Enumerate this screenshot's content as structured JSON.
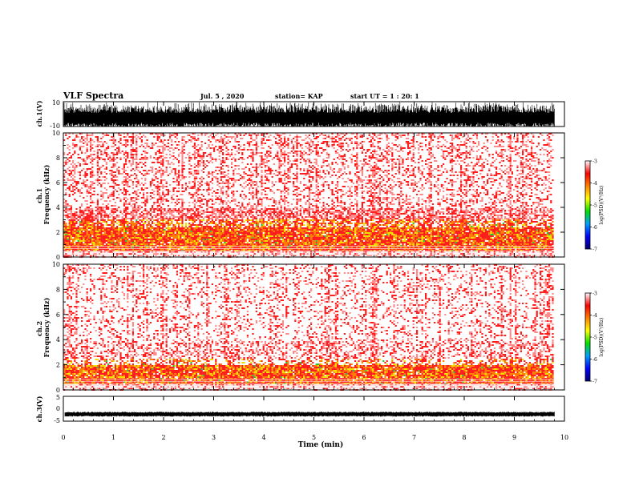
{
  "header": {
    "title": "VLF Spectra",
    "date": "Jul. 5 , 2020",
    "station": "station= KAP",
    "start": "start UT = 1 : 20: 1"
  },
  "chart_data": [
    {
      "type": "line",
      "name": "ch1-waveform",
      "ylabel": "ch.1(V)",
      "ylim": [
        -10,
        10
      ],
      "yticks": [
        "10",
        "-10"
      ],
      "xlim": [
        0,
        10
      ],
      "color": "#000000",
      "description_of_signal": "dense waveform saturating between about -10 and 10 V over 0 to 9.8 min"
    },
    {
      "type": "heatmap",
      "name": "ch1-spectrogram",
      "ylabel": "ch.1\nFrequency (kHz)",
      "ylim": [
        0,
        10
      ],
      "yticks": [
        "0",
        "2",
        "4",
        "6",
        "8",
        "10"
      ],
      "xlim": [
        0,
        10
      ],
      "data_xmax": 9.8,
      "colorbar": {
        "label": "log(PSD)(V²/Hz)",
        "range": [
          -7,
          -3
        ],
        "ticks": [
          "-3",
          "-4",
          "-5",
          "-6",
          "-7"
        ],
        "colors": [
          "#000070",
          "#0000ff",
          "#00a0ff",
          "#00e000",
          "#ffff00",
          "#ff8000",
          "#ff0000",
          "#ffffff"
        ]
      },
      "energy_band_khz": [
        0.5,
        2.5
      ]
    },
    {
      "type": "heatmap",
      "name": "ch2-spectrogram",
      "ylabel": "ch.2\nFrequency (kHz)",
      "ylim": [
        0,
        10
      ],
      "yticks": [
        "0",
        "2",
        "4",
        "6",
        "8",
        "10"
      ],
      "xlim": [
        0,
        10
      ],
      "data_xmax": 9.8,
      "colorbar": {
        "label": "log(PSD)(V²/Hz)",
        "range": [
          -7,
          -3
        ],
        "ticks": [
          "-3",
          "-4",
          "-5",
          "-6",
          "-7"
        ],
        "colors": [
          "#000070",
          "#0000ff",
          "#00a0ff",
          "#00e000",
          "#ffff00",
          "#ff8000",
          "#ff0000",
          "#ffffff"
        ]
      },
      "energy_band_khz": [
        0.5,
        2.0
      ]
    },
    {
      "type": "line",
      "name": "ch3-waveform",
      "ylabel": "ch.3(V)",
      "ylim": [
        -5,
        5
      ],
      "yticks": [
        "5",
        "0",
        "-5"
      ],
      "xlim": [
        0,
        10
      ],
      "xlabel": "Time (min)",
      "xticks": [
        "0",
        "1",
        "2",
        "3",
        "4",
        "5",
        "6",
        "7",
        "8",
        "9",
        "10"
      ],
      "color": "#000000",
      "level_v": -2.2
    }
  ]
}
